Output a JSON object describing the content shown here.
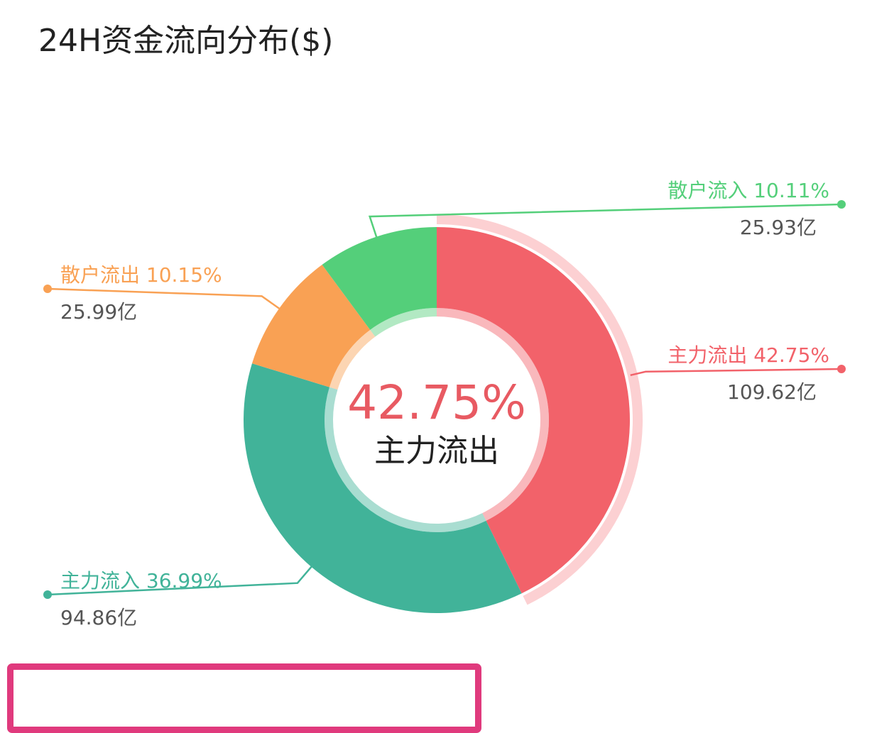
{
  "title": "24H资金流向分布($)",
  "chart_data": {
    "type": "donut",
    "unit_suffix": "亿",
    "center": {
      "value": "42.75%",
      "label": "主力流出"
    },
    "segments": [
      {
        "name": "主力流出",
        "percent": 42.75,
        "value": 109.62,
        "percent_label": "42.75%",
        "value_label": "109.62亿",
        "color": "#f2626a",
        "highlight": true
      },
      {
        "name": "主力流入",
        "percent": 36.99,
        "value": 94.86,
        "percent_label": "36.99%",
        "value_label": "94.86亿",
        "color": "#41b399"
      },
      {
        "name": "散户流出",
        "percent": 10.15,
        "value": 25.99,
        "percent_label": "10.15%",
        "value_label": "25.99亿",
        "color": "#f9a154"
      },
      {
        "name": "散户流入",
        "percent": 10.11,
        "value": 25.93,
        "percent_label": "10.11%",
        "value_label": "25.93亿",
        "color": "#54cf7a"
      }
    ]
  },
  "colors": {
    "center_value": "#e85a62",
    "center_label": "#222222",
    "value_text": "#555555",
    "highlight_ring": "#fcd0d2",
    "card_border": "#e03a7d"
  }
}
